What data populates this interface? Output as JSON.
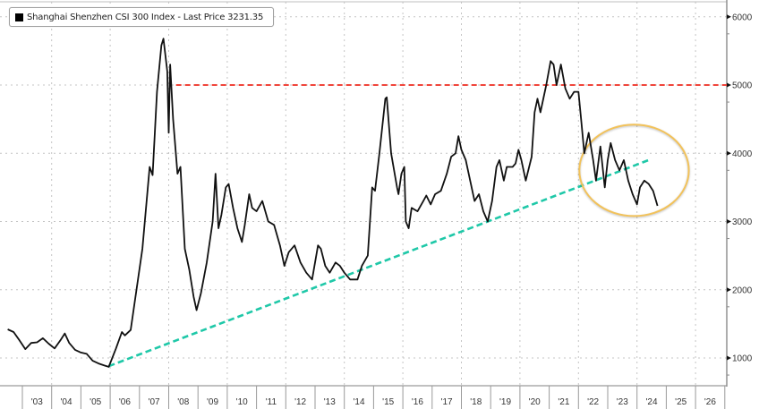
{
  "legend": {
    "label": "Shanghai Shenzhen CSI 300 Index - Last Price 3231.35",
    "swatch_color": "#000000"
  },
  "chart_data": {
    "type": "line",
    "title": "",
    "series": [
      {
        "name": "Shanghai Shenzhen CSI 300 Index - Last Price",
        "last_price": 3231.35,
        "color": "#111111",
        "points": [
          [
            2002.5,
            1420
          ],
          [
            2002.7,
            1380
          ],
          [
            2002.9,
            1260
          ],
          [
            2003.1,
            1130
          ],
          [
            2003.3,
            1220
          ],
          [
            2003.5,
            1230
          ],
          [
            2003.7,
            1290
          ],
          [
            2003.9,
            1210
          ],
          [
            2004.1,
            1140
          ],
          [
            2004.3,
            1260
          ],
          [
            2004.45,
            1360
          ],
          [
            2004.6,
            1220
          ],
          [
            2004.8,
            1120
          ],
          [
            2005.0,
            1080
          ],
          [
            2005.2,
            1060
          ],
          [
            2005.4,
            960
          ],
          [
            2005.6,
            920
          ],
          [
            2005.8,
            890
          ],
          [
            2005.95,
            870
          ],
          [
            2006.2,
            1140
          ],
          [
            2006.4,
            1380
          ],
          [
            2006.5,
            1330
          ],
          [
            2006.7,
            1410
          ],
          [
            2006.9,
            2000
          ],
          [
            2007.1,
            2600
          ],
          [
            2007.35,
            3800
          ],
          [
            2007.45,
            3680
          ],
          [
            2007.6,
            4900
          ],
          [
            2007.75,
            5580
          ],
          [
            2007.82,
            5680
          ],
          [
            2007.95,
            5200
          ],
          [
            2008.0,
            4300
          ],
          [
            2008.05,
            5300
          ],
          [
            2008.15,
            4500
          ],
          [
            2008.3,
            3700
          ],
          [
            2008.4,
            3800
          ],
          [
            2008.55,
            2600
          ],
          [
            2008.7,
            2300
          ],
          [
            2008.85,
            1900
          ],
          [
            2008.95,
            1700
          ],
          [
            2009.1,
            1950
          ],
          [
            2009.3,
            2400
          ],
          [
            2009.5,
            3000
          ],
          [
            2009.6,
            3700
          ],
          [
            2009.7,
            2900
          ],
          [
            2009.8,
            3100
          ],
          [
            2009.95,
            3500
          ],
          [
            2010.05,
            3550
          ],
          [
            2010.2,
            3200
          ],
          [
            2010.35,
            2900
          ],
          [
            2010.5,
            2700
          ],
          [
            2010.6,
            2950
          ],
          [
            2010.75,
            3400
          ],
          [
            2010.85,
            3200
          ],
          [
            2011.0,
            3150
          ],
          [
            2011.2,
            3300
          ],
          [
            2011.4,
            3000
          ],
          [
            2011.6,
            2950
          ],
          [
            2011.8,
            2650
          ],
          [
            2011.95,
            2350
          ],
          [
            2012.1,
            2550
          ],
          [
            2012.3,
            2650
          ],
          [
            2012.5,
            2400
          ],
          [
            2012.7,
            2250
          ],
          [
            2012.9,
            2150
          ],
          [
            2013.1,
            2650
          ],
          [
            2013.2,
            2600
          ],
          [
            2013.35,
            2350
          ],
          [
            2013.5,
            2250
          ],
          [
            2013.7,
            2400
          ],
          [
            2013.85,
            2350
          ],
          [
            2014.0,
            2250
          ],
          [
            2014.2,
            2150
          ],
          [
            2014.45,
            2150
          ],
          [
            2014.6,
            2350
          ],
          [
            2014.8,
            2500
          ],
          [
            2014.95,
            3500
          ],
          [
            2015.05,
            3450
          ],
          [
            2015.2,
            4000
          ],
          [
            2015.4,
            4800
          ],
          [
            2015.45,
            4820
          ],
          [
            2015.6,
            4000
          ],
          [
            2015.8,
            3500
          ],
          [
            2015.85,
            3400
          ],
          [
            2015.95,
            3700
          ],
          [
            2016.05,
            3800
          ],
          [
            2016.1,
            3000
          ],
          [
            2016.2,
            2900
          ],
          [
            2016.3,
            3200
          ],
          [
            2016.5,
            3150
          ],
          [
            2016.7,
            3300
          ],
          [
            2016.8,
            3380
          ],
          [
            2016.95,
            3250
          ],
          [
            2017.1,
            3400
          ],
          [
            2017.3,
            3450
          ],
          [
            2017.5,
            3700
          ],
          [
            2017.65,
            3950
          ],
          [
            2017.8,
            4000
          ],
          [
            2017.9,
            4250
          ],
          [
            2018.0,
            4050
          ],
          [
            2018.15,
            3900
          ],
          [
            2018.3,
            3600
          ],
          [
            2018.45,
            3300
          ],
          [
            2018.6,
            3400
          ],
          [
            2018.75,
            3150
          ],
          [
            2018.9,
            3000
          ],
          [
            2019.05,
            3300
          ],
          [
            2019.2,
            3800
          ],
          [
            2019.3,
            3900
          ],
          [
            2019.45,
            3600
          ],
          [
            2019.55,
            3800
          ],
          [
            2019.75,
            3800
          ],
          [
            2019.85,
            3850
          ],
          [
            2019.95,
            4050
          ],
          [
            2020.05,
            3900
          ],
          [
            2020.2,
            3600
          ],
          [
            2020.4,
            3950
          ],
          [
            2020.5,
            4600
          ],
          [
            2020.6,
            4800
          ],
          [
            2020.7,
            4600
          ],
          [
            2020.9,
            5000
          ],
          [
            2021.05,
            5350
          ],
          [
            2021.15,
            5300
          ],
          [
            2021.25,
            5000
          ],
          [
            2021.4,
            5300
          ],
          [
            2021.55,
            4950
          ],
          [
            2021.7,
            4800
          ],
          [
            2021.85,
            4900
          ],
          [
            2022.0,
            4900
          ],
          [
            2022.1,
            4450
          ],
          [
            2022.2,
            4000
          ],
          [
            2022.35,
            4300
          ],
          [
            2022.5,
            3900
          ],
          [
            2022.6,
            3600
          ],
          [
            2022.75,
            4100
          ],
          [
            2022.9,
            3500
          ],
          [
            2023.0,
            3900
          ],
          [
            2023.1,
            4150
          ],
          [
            2023.25,
            3900
          ],
          [
            2023.4,
            3750
          ],
          [
            2023.55,
            3900
          ],
          [
            2023.7,
            3600
          ],
          [
            2023.85,
            3400
          ],
          [
            2024.0,
            3250
          ],
          [
            2024.1,
            3500
          ],
          [
            2024.25,
            3600
          ],
          [
            2024.4,
            3550
          ],
          [
            2024.55,
            3450
          ],
          [
            2024.7,
            3230
          ]
        ]
      }
    ],
    "annotations": [
      {
        "type": "hline",
        "label": "resistance",
        "y": 5000,
        "x_start": 2008.25,
        "x_end": 2026.0,
        "color": "#f0443a",
        "style": "dashed"
      },
      {
        "type": "trendline",
        "label": "support",
        "from": [
          2005.95,
          880
        ],
        "to": [
          2024.4,
          3900
        ],
        "color": "#1fc8a8",
        "style": "dashed"
      },
      {
        "type": "ellipse",
        "label": "highlight",
        "center": [
          2023.9,
          3750
        ],
        "rx_years": 1.87,
        "ry_value": 670,
        "color": "#f2c25a"
      }
    ],
    "xlabel": "",
    "ylabel": "",
    "x_tick_labels": [
      "'03",
      "'04",
      "'05",
      "'06",
      "'07",
      "'08",
      "'09",
      "'10",
      "'11",
      "'12",
      "'13",
      "'14",
      "'15",
      "'16",
      "'17",
      "'18",
      "'19",
      "'20",
      "'21",
      "'22",
      "'23",
      "'24",
      "'25",
      "'26"
    ],
    "y_tick_labels": [
      "6000",
      "5000",
      "4000",
      "3000",
      "2000",
      "1000"
    ],
    "y_ticks": [
      6000,
      5000,
      4000,
      3000,
      2000,
      1000
    ],
    "xlim": [
      2002.5,
      2027.0
    ],
    "ylim": [
      600,
      6250
    ],
    "grid": true,
    "legend_position": "top-left",
    "y_axis_side": "right"
  }
}
